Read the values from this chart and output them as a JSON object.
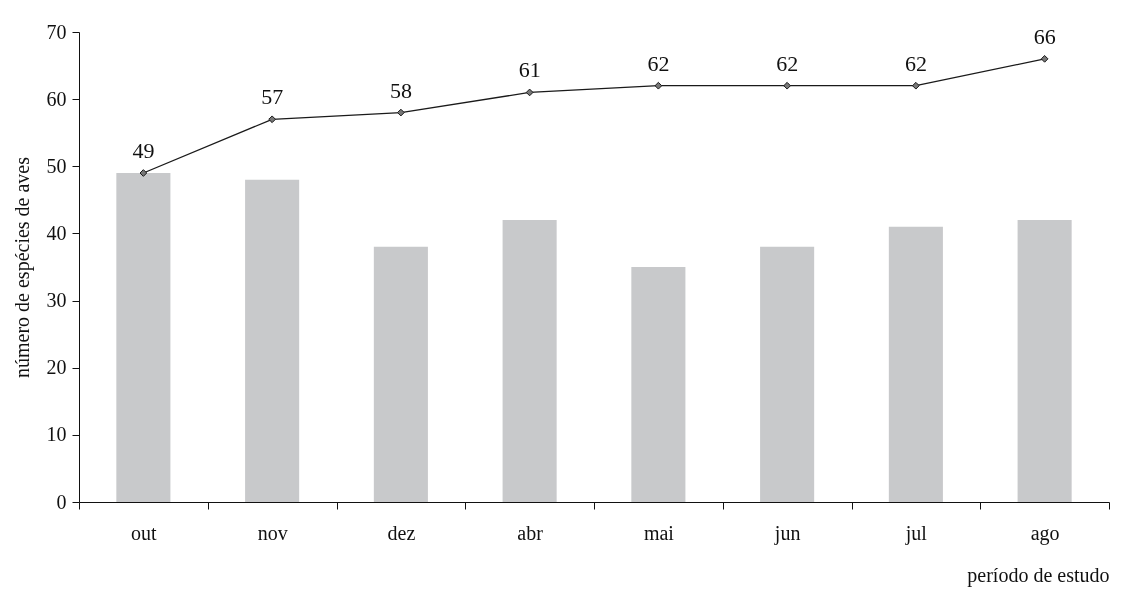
{
  "chart_data": {
    "type": "bar",
    "xlabel": "período de estudo",
    "ylabel": "número de espécies de aves",
    "categories": [
      "out",
      "nov",
      "dez",
      "abr",
      "mai",
      "jun",
      "jul",
      "ago"
    ],
    "series": [
      {
        "color": "#c8c9cb",
        "values": [
          49,
          48,
          38,
          42,
          35,
          38,
          41,
          42
        ]
      },
      {
        "type": "line",
        "color": "#1a1a1a",
        "values": [
          49,
          57,
          58,
          61,
          62,
          62,
          62,
          66
        ],
        "value_labels": [
          "49",
          "57",
          "58",
          "61",
          "62",
          "62",
          "62",
          "66"
        ]
      }
    ],
    "ylim": [
      0,
      70
    ],
    "yticks": [
      0,
      10,
      20,
      30,
      40,
      50,
      60,
      70
    ],
    "marker": "diamond",
    "grid": false
  }
}
